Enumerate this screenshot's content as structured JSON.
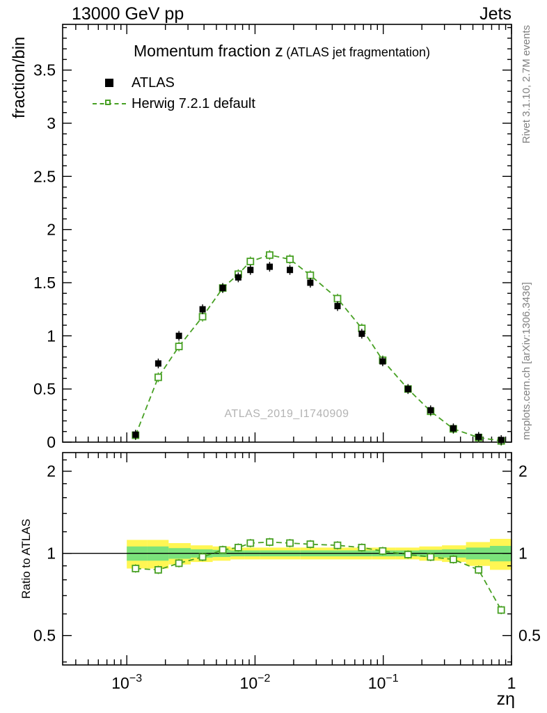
{
  "header": {
    "left": "13000 GeV pp",
    "right": "Jets"
  },
  "side_notes": {
    "top": "Rivet 3.1.10,  2.7M events",
    "bottom": "mcplots.cern.ch [arXiv:1306.3436]"
  },
  "watermark": "ATLAS_2019_I1740909",
  "chart_data": {
    "type": "scatter",
    "title": "Momentum fraction z",
    "title_suffix": "(ATLAS jet fragmentation)",
    "xlabel": "zη",
    "ylabel": "fraction/bin",
    "ratio_ylabel": "Ratio to ATLAS",
    "x_log": true,
    "xlim": [
      0.000316,
      1.0
    ],
    "ylim": [
      0,
      3.93
    ],
    "yticks": [
      0,
      0.5,
      1,
      1.5,
      2,
      2.5,
      3,
      3.5
    ],
    "xticks_labeled": [
      0.001,
      0.01,
      0.1,
      1
    ],
    "ratio_log": true,
    "ratio_lim": [
      0.39,
      2.34
    ],
    "ratio_ticks": [
      0.5,
      1,
      2
    ],
    "legend_position": "top-left",
    "grid": false,
    "x": [
      0.00117,
      0.00176,
      0.00255,
      0.0039,
      0.0056,
      0.0074,
      0.0092,
      0.013,
      0.0187,
      0.027,
      0.044,
      0.068,
      0.099,
      0.156,
      0.234,
      0.352,
      0.554,
      0.831
    ],
    "series": [
      {
        "name": "ATLAS",
        "color": "#000000",
        "marker": "filled-square",
        "values": [
          0.07,
          0.74,
          1.0,
          1.25,
          1.45,
          1.55,
          1.62,
          1.65,
          1.62,
          1.5,
          1.28,
          1.02,
          0.76,
          0.5,
          0.3,
          0.13,
          0.05,
          0.02
        ]
      },
      {
        "name": "Herwig 7.2.1 default",
        "color": "#47a023",
        "marker": "open-square-dashed-line",
        "values": [
          0.065,
          0.61,
          0.9,
          1.18,
          1.45,
          1.58,
          1.7,
          1.76,
          1.72,
          1.57,
          1.35,
          1.07,
          0.77,
          0.5,
          0.29,
          0.125,
          0.043,
          0.012
        ]
      }
    ],
    "ratio": {
      "values": [
        0.88,
        0.87,
        0.92,
        0.97,
        1.03,
        1.05,
        1.09,
        1.1,
        1.09,
        1.08,
        1.07,
        1.05,
        1.02,
        0.99,
        0.97,
        0.95,
        0.87,
        0.62
      ],
      "band_xmin": 0.001,
      "band_xmax": 1.0,
      "band_yellow": [
        0.12,
        0.12,
        0.09,
        0.07,
        0.06,
        0.05,
        0.05,
        0.05,
        0.05,
        0.05,
        0.05,
        0.05,
        0.05,
        0.05,
        0.06,
        0.07,
        0.1,
        0.13
      ],
      "band_green": [
        0.06,
        0.06,
        0.045,
        0.035,
        0.03,
        0.025,
        0.025,
        0.025,
        0.025,
        0.025,
        0.025,
        0.025,
        0.025,
        0.025,
        0.03,
        0.035,
        0.05,
        0.065
      ],
      "band_colors": {
        "yellow": "#fff653",
        "green": "#7be27b"
      }
    }
  }
}
